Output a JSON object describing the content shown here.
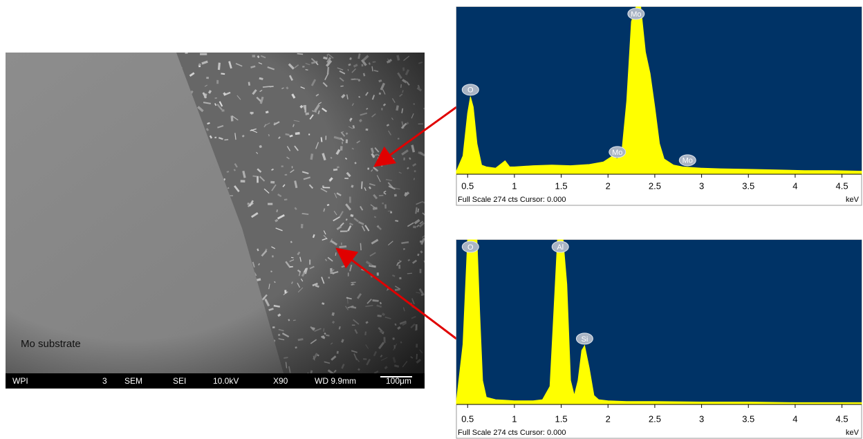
{
  "sem_image": {
    "label": "Mo substrate",
    "info_bar": [
      "WPI",
      "3",
      "SEM",
      "SEI",
      "10.0kV",
      "X90",
      "WD 9.9mm",
      "100μm"
    ]
  },
  "chart_data": [
    {
      "type": "area",
      "color": "#ffff00",
      "background": "#003366",
      "x": [
        0.38,
        0.45,
        0.5,
        0.53,
        0.56,
        0.6,
        0.65,
        0.7,
        0.8,
        0.9,
        0.95,
        1.0,
        1.2,
        1.4,
        1.6,
        1.8,
        1.95,
        2.05,
        2.1,
        2.15,
        2.2,
        2.25,
        2.3,
        2.35,
        2.4,
        2.45,
        2.5,
        2.55,
        2.6,
        2.7,
        2.8,
        3.0,
        3.2,
        3.5,
        3.8,
        4.1,
        4.4,
        4.71
      ],
      "values": [
        5,
        30,
        100,
        127,
        110,
        50,
        15,
        12,
        10,
        22,
        12,
        12,
        14,
        15,
        14,
        16,
        20,
        30,
        25,
        40,
        120,
        250,
        274,
        274,
        200,
        165,
        110,
        50,
        25,
        15,
        12,
        10,
        9,
        8,
        7,
        6,
        6,
        5
      ],
      "xlim": [
        0.38,
        4.71
      ],
      "ylim": [
        0,
        274
      ],
      "xticks": [
        0.5,
        1,
        1.5,
        2,
        2.5,
        3,
        3.5,
        4,
        4.5
      ],
      "x_label": "keV",
      "footer": "Full Scale 274 cts Cursor: 0.000",
      "peaks": [
        {
          "label": "O",
          "x": 0.53
        },
        {
          "label": "Mo",
          "x": 2.3
        },
        {
          "label": "Mo",
          "x": 2.1
        },
        {
          "label": "Mo",
          "x": 2.85
        }
      ]
    },
    {
      "type": "area",
      "color": "#ffff00",
      "background": "#003366",
      "x": [
        0.38,
        0.45,
        0.5,
        0.55,
        0.6,
        0.63,
        0.66,
        0.7,
        0.8,
        0.9,
        1.0,
        1.1,
        1.2,
        1.3,
        1.38,
        1.42,
        1.46,
        1.52,
        1.56,
        1.6,
        1.64,
        1.68,
        1.72,
        1.75,
        1.8,
        1.85,
        1.9,
        2.0,
        2.2,
        2.5,
        3.0,
        3.5,
        4.0,
        4.5,
        4.71
      ],
      "values": [
        5,
        100,
        274,
        274,
        274,
        150,
        40,
        12,
        8,
        7,
        6,
        6,
        6,
        8,
        30,
        150,
        274,
        274,
        200,
        40,
        15,
        40,
        90,
        98,
        60,
        15,
        8,
        6,
        5,
        5,
        4,
        4,
        3,
        3,
        3
      ],
      "xlim": [
        0.38,
        4.71
      ],
      "ylim": [
        0,
        274
      ],
      "xticks": [
        0.5,
        1,
        1.5,
        2,
        2.5,
        3,
        3.5,
        4,
        4.5
      ],
      "x_label": "keV",
      "footer": "Full Scale 274 cts Cursor: 0.000",
      "peaks": [
        {
          "label": "O",
          "x": 0.53
        },
        {
          "label": "Al",
          "x": 1.49
        },
        {
          "label": "Si",
          "x": 1.75
        }
      ]
    }
  ]
}
